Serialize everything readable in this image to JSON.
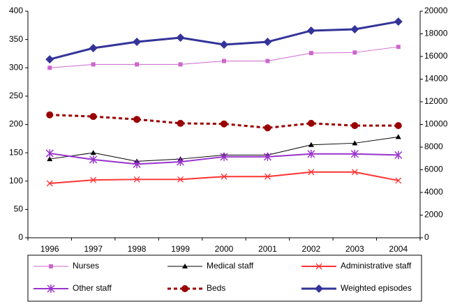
{
  "chart_data": {
    "type": "line",
    "categories": [
      "1996",
      "1997",
      "1998",
      "1999",
      "2000",
      "2001",
      "2002",
      "2003",
      "2004"
    ],
    "ylim": [
      0,
      400
    ],
    "yticks": [
      0,
      50,
      100,
      150,
      200,
      250,
      300,
      350,
      400
    ],
    "y2lim": [
      0,
      20000
    ],
    "y2ticks": [
      0,
      2000,
      4000,
      6000,
      8000,
      10000,
      12000,
      14000,
      16000,
      18000,
      20000
    ],
    "legend": "bottom",
    "series": [
      {
        "name": "Nurses",
        "color": "#cc66cc",
        "marker": "square",
        "dash": false,
        "line_width": 1,
        "values": [
          300,
          306,
          306,
          306,
          312,
          312,
          326,
          327,
          337
        ]
      },
      {
        "name": "Medical staff",
        "color": "#000000",
        "marker": "triangle",
        "dash": false,
        "line_width": 1,
        "values": [
          139,
          150,
          135,
          139,
          146,
          146,
          164,
          167,
          178
        ]
      },
      {
        "name": "Administrative staff",
        "color": "#ff3333",
        "marker": "x",
        "dash": false,
        "line_width": 2,
        "values": [
          96,
          102,
          103,
          103,
          108,
          108,
          116,
          116,
          101
        ]
      },
      {
        "name": "Other staff",
        "color": "#9933cc",
        "marker": "star",
        "dash": false,
        "line_width": 2,
        "values": [
          149,
          138,
          130,
          134,
          143,
          143,
          148,
          148,
          146
        ]
      },
      {
        "name": "Beds",
        "color": "#990000",
        "marker": "circle",
        "dash": true,
        "line_width": 3,
        "values": [
          217,
          214,
          209,
          202,
          201,
          194,
          202,
          198,
          198
        ]
      },
      {
        "name": "Weighted episodes",
        "color": "#333399",
        "marker": "diamond",
        "dash": false,
        "line_width": 3,
        "axis": "y2",
        "values": [
          15750,
          16740,
          17290,
          17660,
          17050,
          17290,
          18280,
          18400,
          19080
        ]
      }
    ]
  }
}
